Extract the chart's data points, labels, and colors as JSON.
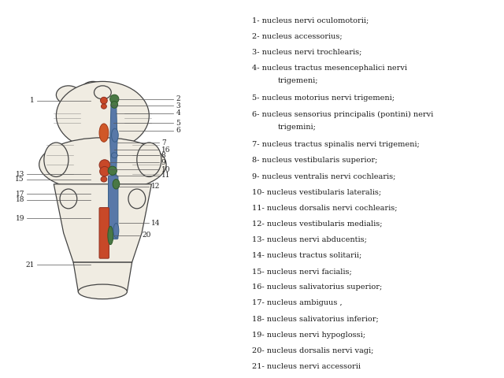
{
  "background_color": "#ffffff",
  "legend_lines": [
    "1- nucleus nervi oculomotorii;",
    "2- nucleus accessorius;",
    "3- nucleus nervi trochlearis;",
    "4- nucleus tractus mesencephalici nervi\n     trigemeni;",
    "5- nucleus motorius nervi trigemeni;",
    "6- nucleus sensorius principalis (pontini) nervi\n     trigemini;",
    "7- nucleus tractus spinalis nervi trigemeni;",
    "8- nucleus vestibularis superior;",
    "9- nucleus ventralis nervi cochlearis;",
    "10- nucleus vestibularis lateralis;",
    "11- nucleus dorsalis nervi cochlearis;",
    "12- nucleus vestibularis medialis;",
    "13- nucleus nervi abducentis;",
    "14- nucleus tractus solitarii;",
    "15- nucleus nervi facialis;",
    "16- nucleus salivatorius superior;",
    "17- nucleus ambiguus ,",
    "18- nucleus salivatorius inferior;",
    "19- nucleus nervi hypoglossi;",
    "20- nucleus dorsalis nervi vagi;",
    "21- nucleus nervi accessorii"
  ],
  "text_fontsize": 7.0,
  "fig_width": 6.4,
  "fig_height": 4.8,
  "edge_color": "#444444",
  "fill_color": "#f0ece2",
  "red_color": "#c84828",
  "green_color": "#4a7845",
  "blue_color": "#5878a8",
  "line_color": "#555555"
}
